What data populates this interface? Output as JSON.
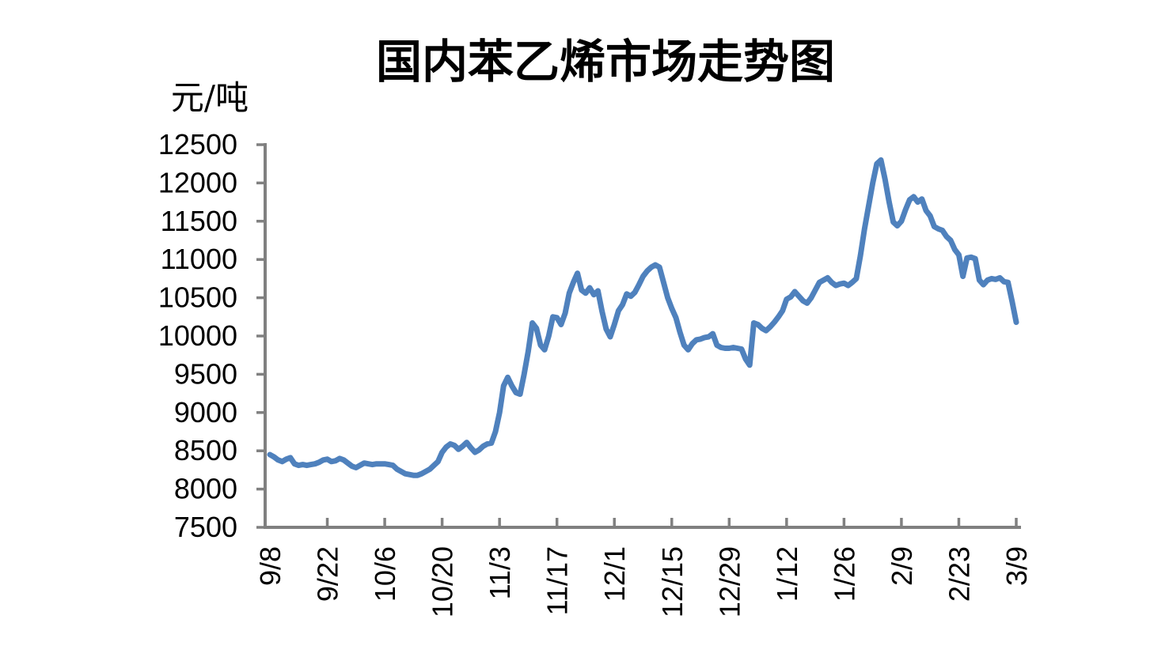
{
  "page": {
    "title": "国内苯乙烯市场走势图",
    "y_unit_label": "元/吨"
  },
  "chart_data": {
    "type": "line",
    "title": "国内苯乙烯市场走势图",
    "ylabel": "元/吨",
    "xlabel": "",
    "legend": "none",
    "grid": false,
    "ylim": [
      7500,
      12500
    ],
    "y_ticks": [
      7500,
      8000,
      8500,
      9000,
      9500,
      10000,
      10500,
      11000,
      11500,
      12000,
      12500
    ],
    "x_ticks": [
      {
        "offset": 0,
        "label": "9/8"
      },
      {
        "offset": 14,
        "label": "9/22"
      },
      {
        "offset": 28,
        "label": "10/6"
      },
      {
        "offset": 42,
        "label": "10/20"
      },
      {
        "offset": 56,
        "label": "11/3"
      },
      {
        "offset": 70,
        "label": "11/17"
      },
      {
        "offset": 84,
        "label": "12/1"
      },
      {
        "offset": 98,
        "label": "12/15"
      },
      {
        "offset": 112,
        "label": "12/29"
      },
      {
        "offset": 126,
        "label": "1/12"
      },
      {
        "offset": 140,
        "label": "1/26"
      },
      {
        "offset": 154,
        "label": "2/9"
      },
      {
        "offset": 168,
        "label": "2/23"
      },
      {
        "offset": 182,
        "label": "3/9"
      }
    ],
    "line_color": "#4F81BD",
    "axis_color": "#808080",
    "points_format": "[day_offset_from_9/8, price_yuan_per_ton]",
    "points": [
      [
        0,
        8450
      ],
      [
        1,
        8420
      ],
      [
        2,
        8380
      ],
      [
        3,
        8360
      ],
      [
        4,
        8390
      ],
      [
        5,
        8410
      ],
      [
        6,
        8330
      ],
      [
        7,
        8310
      ],
      [
        8,
        8320
      ],
      [
        9,
        8310
      ],
      [
        10,
        8320
      ],
      [
        11,
        8330
      ],
      [
        12,
        8350
      ],
      [
        13,
        8380
      ],
      [
        14,
        8390
      ],
      [
        15,
        8360
      ],
      [
        16,
        8370
      ],
      [
        17,
        8400
      ],
      [
        18,
        8380
      ],
      [
        19,
        8340
      ],
      [
        20,
        8300
      ],
      [
        21,
        8280
      ],
      [
        22,
        8310
      ],
      [
        23,
        8340
      ],
      [
        24,
        8330
      ],
      [
        25,
        8320
      ],
      [
        26,
        8330
      ],
      [
        27,
        8330
      ],
      [
        28,
        8330
      ],
      [
        29,
        8320
      ],
      [
        30,
        8310
      ],
      [
        31,
        8260
      ],
      [
        32,
        8230
      ],
      [
        33,
        8200
      ],
      [
        34,
        8190
      ],
      [
        35,
        8180
      ],
      [
        36,
        8180
      ],
      [
        37,
        8200
      ],
      [
        38,
        8230
      ],
      [
        39,
        8260
      ],
      [
        40,
        8310
      ],
      [
        41,
        8360
      ],
      [
        42,
        8480
      ],
      [
        43,
        8550
      ],
      [
        44,
        8590
      ],
      [
        45,
        8570
      ],
      [
        46,
        8520
      ],
      [
        47,
        8560
      ],
      [
        48,
        8610
      ],
      [
        49,
        8540
      ],
      [
        50,
        8480
      ],
      [
        51,
        8510
      ],
      [
        52,
        8560
      ],
      [
        53,
        8590
      ],
      [
        54,
        8600
      ],
      [
        55,
        8750
      ],
      [
        56,
        9000
      ],
      [
        57,
        9350
      ],
      [
        58,
        9460
      ],
      [
        59,
        9350
      ],
      [
        60,
        9260
      ],
      [
        61,
        9240
      ],
      [
        62,
        9500
      ],
      [
        63,
        9800
      ],
      [
        64,
        10170
      ],
      [
        65,
        10100
      ],
      [
        66,
        9880
      ],
      [
        67,
        9820
      ],
      [
        68,
        10000
      ],
      [
        69,
        10250
      ],
      [
        70,
        10240
      ],
      [
        71,
        10150
      ],
      [
        72,
        10300
      ],
      [
        73,
        10560
      ],
      [
        74,
        10700
      ],
      [
        75,
        10820
      ],
      [
        76,
        10600
      ],
      [
        77,
        10560
      ],
      [
        78,
        10630
      ],
      [
        79,
        10540
      ],
      [
        80,
        10590
      ],
      [
        81,
        10320
      ],
      [
        82,
        10090
      ],
      [
        83,
        9990
      ],
      [
        84,
        10150
      ],
      [
        85,
        10330
      ],
      [
        86,
        10410
      ],
      [
        87,
        10550
      ],
      [
        88,
        10520
      ],
      [
        89,
        10570
      ],
      [
        90,
        10670
      ],
      [
        91,
        10780
      ],
      [
        92,
        10850
      ],
      [
        93,
        10900
      ],
      [
        94,
        10930
      ],
      [
        95,
        10900
      ],
      [
        96,
        10700
      ],
      [
        97,
        10500
      ],
      [
        98,
        10360
      ],
      [
        99,
        10240
      ],
      [
        100,
        10050
      ],
      [
        101,
        9880
      ],
      [
        102,
        9820
      ],
      [
        103,
        9900
      ],
      [
        104,
        9950
      ],
      [
        105,
        9960
      ],
      [
        106,
        9980
      ],
      [
        107,
        9990
      ],
      [
        108,
        10030
      ],
      [
        109,
        9880
      ],
      [
        110,
        9850
      ],
      [
        111,
        9840
      ],
      [
        112,
        9840
      ],
      [
        113,
        9850
      ],
      [
        114,
        9840
      ],
      [
        115,
        9830
      ],
      [
        116,
        9700
      ],
      [
        117,
        9620
      ],
      [
        118,
        10170
      ],
      [
        119,
        10150
      ],
      [
        120,
        10100
      ],
      [
        121,
        10070
      ],
      [
        122,
        10120
      ],
      [
        123,
        10180
      ],
      [
        124,
        10250
      ],
      [
        125,
        10330
      ],
      [
        126,
        10480
      ],
      [
        127,
        10510
      ],
      [
        128,
        10580
      ],
      [
        129,
        10520
      ],
      [
        130,
        10460
      ],
      [
        131,
        10430
      ],
      [
        132,
        10500
      ],
      [
        133,
        10600
      ],
      [
        134,
        10700
      ],
      [
        135,
        10730
      ],
      [
        136,
        10760
      ],
      [
        137,
        10700
      ],
      [
        138,
        10660
      ],
      [
        139,
        10680
      ],
      [
        140,
        10690
      ],
      [
        141,
        10660
      ],
      [
        142,
        10700
      ],
      [
        143,
        10750
      ],
      [
        144,
        11050
      ],
      [
        145,
        11400
      ],
      [
        146,
        11700
      ],
      [
        147,
        12000
      ],
      [
        148,
        12250
      ],
      [
        149,
        12300
      ],
      [
        150,
        12050
      ],
      [
        151,
        11750
      ],
      [
        152,
        11490
      ],
      [
        153,
        11440
      ],
      [
        154,
        11500
      ],
      [
        155,
        11650
      ],
      [
        156,
        11780
      ],
      [
        157,
        11820
      ],
      [
        158,
        11750
      ],
      [
        159,
        11790
      ],
      [
        160,
        11640
      ],
      [
        161,
        11570
      ],
      [
        162,
        11430
      ],
      [
        163,
        11400
      ],
      [
        164,
        11380
      ],
      [
        165,
        11300
      ],
      [
        166,
        11250
      ],
      [
        167,
        11130
      ],
      [
        168,
        11060
      ],
      [
        169,
        10780
      ],
      [
        170,
        11020
      ],
      [
        171,
        11030
      ],
      [
        172,
        11010
      ],
      [
        173,
        10730
      ],
      [
        174,
        10670
      ],
      [
        175,
        10730
      ],
      [
        176,
        10750
      ],
      [
        177,
        10740
      ],
      [
        178,
        10760
      ],
      [
        179,
        10710
      ],
      [
        180,
        10700
      ],
      [
        181,
        10450
      ],
      [
        182,
        10180
      ]
    ]
  }
}
